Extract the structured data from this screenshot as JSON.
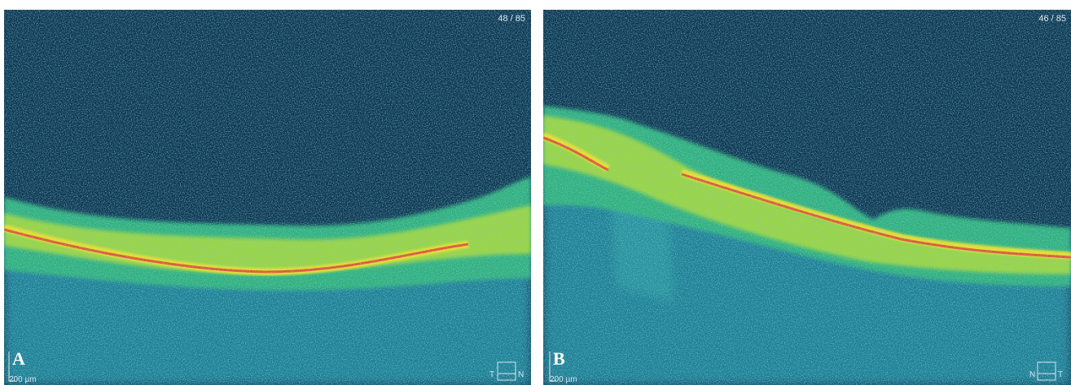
{
  "panels": [
    {
      "label": "A",
      "counter": "48 / 85",
      "scale": "200 µm",
      "orientation": [
        "T",
        "N"
      ]
    },
    {
      "label": "B",
      "counter": "46 / 85",
      "scale": "200 µm",
      "orientation": [
        "N",
        "T"
      ]
    }
  ]
}
